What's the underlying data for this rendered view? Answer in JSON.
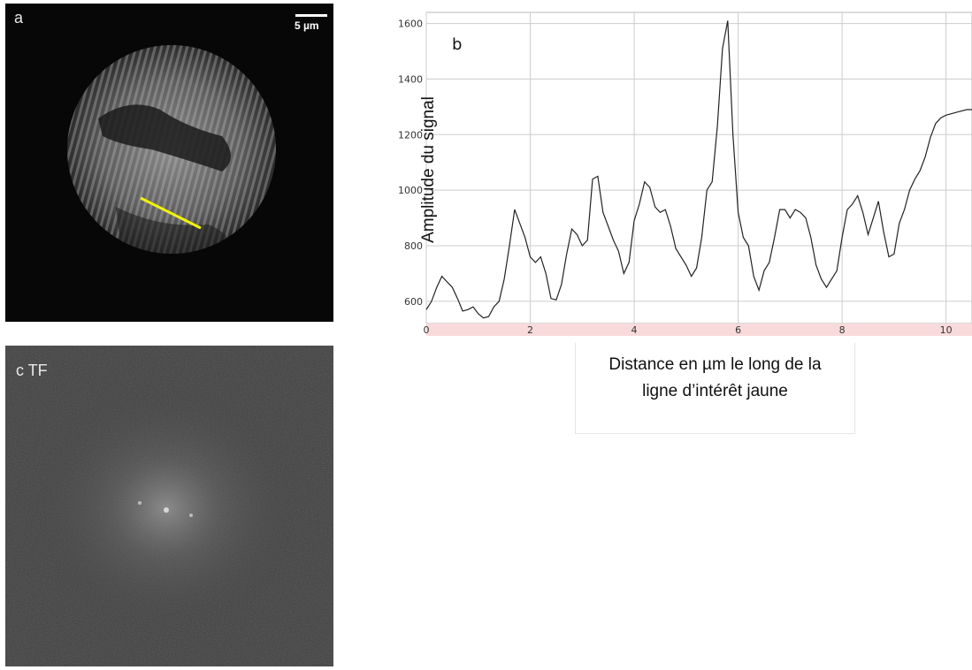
{
  "panels": {
    "a": {
      "label": "a",
      "scalebar": "5 µm"
    },
    "c": {
      "label": "c   TF"
    }
  },
  "colors": {
    "profile_line": "#f2f20c",
    "grid": "#cccccc",
    "series": "#222222",
    "axis_band": "#f8dada"
  },
  "chart_data": {
    "type": "line",
    "panel_label": "b",
    "xlabel": "Distance en µm le long de la ligne d’intérêt jaune",
    "xlabel_lines": [
      "Distance en µm le long de la",
      "ligne d’intérêt jaune"
    ],
    "ylabel": "Amplitude du signal",
    "xlim": [
      0,
      10.5
    ],
    "ylim": [
      520,
      1640
    ],
    "xticks": [
      0,
      2,
      4,
      6,
      8,
      10
    ],
    "yticks": [
      600,
      800,
      1000,
      1200,
      1400,
      1600
    ],
    "grid": true,
    "series": [
      {
        "x": [
          0,
          0.1,
          0.2,
          0.3,
          0.4,
          0.5,
          0.6,
          0.7,
          0.8,
          0.9,
          1.0,
          1.1,
          1.2,
          1.3,
          1.4,
          1.5,
          1.6,
          1.7,
          1.8,
          1.9,
          2.0,
          2.1,
          2.2,
          2.3,
          2.4,
          2.5,
          2.6,
          2.7,
          2.8,
          2.9,
          3.0,
          3.1,
          3.2,
          3.3,
          3.4,
          3.5,
          3.6,
          3.7,
          3.8,
          3.9,
          4.0,
          4.1,
          4.2,
          4.3,
          4.4,
          4.5,
          4.6,
          4.7,
          4.8,
          4.9,
          5.0,
          5.1,
          5.2,
          5.3,
          5.4,
          5.5,
          5.6,
          5.7,
          5.8,
          5.9,
          6.0,
          6.1,
          6.2,
          6.3,
          6.4,
          6.5,
          6.6,
          6.7,
          6.8,
          6.9,
          7.0,
          7.1,
          7.2,
          7.3,
          7.4,
          7.5,
          7.6,
          7.7,
          7.8,
          7.9,
          8.0,
          8.1,
          8.2,
          8.3,
          8.4,
          8.5,
          8.6,
          8.7,
          8.8,
          8.9,
          9.0,
          9.1,
          9.2,
          9.3,
          9.4,
          9.5,
          9.6,
          9.7,
          9.8,
          9.9,
          10.0,
          10.1,
          10.2,
          10.3,
          10.4,
          10.5
        ],
        "y": [
          570,
          600,
          650,
          690,
          670,
          650,
          610,
          565,
          570,
          580,
          555,
          540,
          545,
          580,
          600,
          680,
          800,
          930,
          880,
          830,
          760,
          740,
          760,
          700,
          610,
          605,
          660,
          770,
          860,
          840,
          800,
          820,
          1040,
          1050,
          920,
          870,
          820,
          780,
          700,
          740,
          890,
          950,
          1030,
          1010,
          940,
          920,
          930,
          870,
          790,
          760,
          730,
          690,
          720,
          830,
          1000,
          1030,
          1230,
          1510,
          1610,
          1200,
          920,
          830,
          800,
          690,
          640,
          710,
          740,
          830,
          930,
          930,
          900,
          930,
          920,
          900,
          830,
          730,
          680,
          650,
          680,
          710,
          830,
          930,
          950,
          980,
          920,
          840,
          900,
          960,
          850,
          760,
          770,
          880,
          930,
          1000,
          1040,
          1070,
          1120,
          1190,
          1240,
          1260,
          1270,
          1275,
          1280,
          1285,
          1290,
          1290
        ]
      }
    ]
  }
}
